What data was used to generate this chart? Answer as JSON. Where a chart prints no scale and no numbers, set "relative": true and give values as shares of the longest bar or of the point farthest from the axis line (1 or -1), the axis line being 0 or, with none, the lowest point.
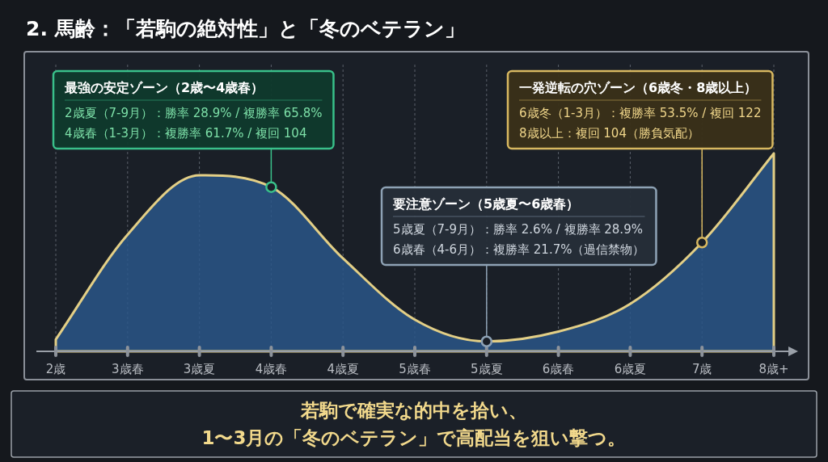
{
  "chart_data": {
    "type": "area",
    "title": "2. 馬齢：「若駒の絶対性」と「冬のベテラン」",
    "relative": true,
    "grid": "x",
    "categories": [
      "2歳",
      "3歳春",
      "3歳夏",
      "4歳春",
      "4歳夏",
      "5歳春",
      "5歳夏",
      "6歳春",
      "6歳夏",
      "7歳",
      "8歳+"
    ],
    "series": [
      {
        "color": "#2a5688",
        "values": [
          0.06,
          0.59,
          0.89,
          0.83,
          0.47,
          0.16,
          0.05,
          0.1,
          0.24,
          0.55,
          1
        ]
      }
    ],
    "annotations": [
      {
        "text": "最強の安定ゾーン（2歳〜4歳春）\n2歳夏（7-9月）：勝率 28.9% / 複勝率 65.8%\n4歳春（1-3月）：複勝率 61.7% / 複回 104",
        "x": "4歳春",
        "y": 0.83
      },
      {
        "text": "要注意ゾーン（5歳夏〜6歳春）\n5歳夏（7-9月）：勝率 2.6% / 複勝率 28.9%\n6歳春（4-6月）：複勝率 21.7%（過信禁物）",
        "x": "5歳夏",
        "y": 0.05
      },
      {
        "text": "一発逆転の穴ゾーン（6歳冬・8歳以上）\n6歳冬（1-3月）：複勝率 53.5% / 複回 122\n8歳以上：複回 104（勝負気配）",
        "x": "7歳",
        "y": 0.55
      },
      "若駒で確実な的中を拾い、\n1〜3月の「冬のベテラン」で高配当を狙い撃つ。"
    ]
  }
}
